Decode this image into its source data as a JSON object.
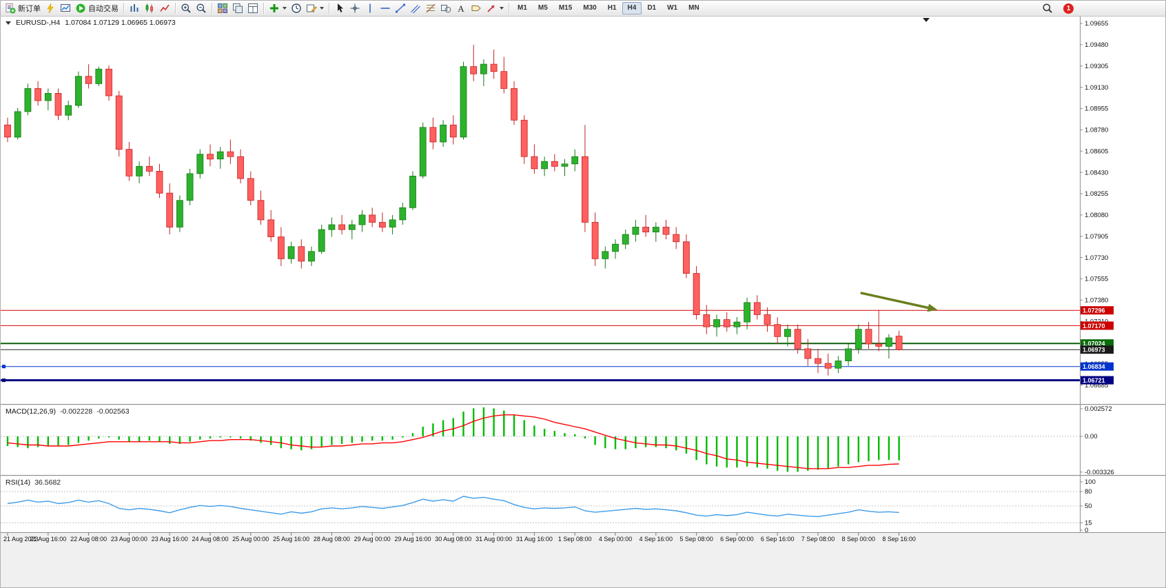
{
  "toolbar": {
    "groups": [
      {
        "items": [
          {
            "name": "new-order",
            "icon": "new-order-icon",
            "label": "新订单"
          },
          {
            "name": "mql-editor",
            "icon": "bolt-icon"
          },
          {
            "name": "market-watch",
            "icon": "market-watch-icon"
          },
          {
            "name": "auto-trading",
            "icon": "autotrade-play-icon",
            "label": "自动交易"
          }
        ]
      },
      {
        "items": [
          {
            "name": "bar-chart-mode",
            "icon": "bar-chart-icon"
          },
          {
            "name": "candlestick-chart-mode",
            "icon": "candle-chart-icon"
          },
          {
            "name": "line-chart-mode",
            "icon": "line-chart-icon"
          }
        ]
      },
      {
        "items": [
          {
            "name": "zoom-in",
            "icon": "zoom-in-icon"
          },
          {
            "name": "zoom-out",
            "icon": "zoom-out-icon"
          }
        ]
      },
      {
        "items": [
          {
            "name": "tile-windows",
            "icon": "tile-windows-icon"
          },
          {
            "name": "auto-arrange",
            "icon": "arrange-icon"
          },
          {
            "name": "data-window",
            "icon": "data-window-icon"
          }
        ]
      },
      {
        "items": [
          {
            "name": "add-indicator",
            "icon": "add-indicator-icon",
            "caret": true
          },
          {
            "name": "clock",
            "icon": "clock-icon"
          },
          {
            "name": "templates",
            "icon": "template-icon",
            "caret": true
          }
        ]
      },
      {
        "items": [
          {
            "name": "cursor",
            "icon": "cursor-icon"
          },
          {
            "name": "crosshair",
            "icon": "crosshair-icon"
          },
          {
            "name": "draw-vertical-line",
            "icon": "vline-icon"
          },
          {
            "name": "draw-horizontal-line",
            "icon": "hline-icon"
          },
          {
            "name": "draw-trendline",
            "icon": "trendline-icon"
          },
          {
            "name": "draw-channel",
            "icon": "channel-icon"
          },
          {
            "name": "draw-fibonacci",
            "icon": "fibonacci-icon"
          },
          {
            "name": "draw-shapes",
            "icon": "shapes-icon"
          },
          {
            "name": "draw-text",
            "icon": "text-icon"
          },
          {
            "name": "draw-label",
            "icon": "label-icon"
          },
          {
            "name": "draw-arrows",
            "icon": "arrows-icon",
            "caret": true
          }
        ]
      }
    ],
    "timeframes": [
      "M1",
      "M5",
      "M15",
      "M30",
      "H1",
      "H4",
      "D1",
      "W1",
      "MN"
    ],
    "active_timeframe": "H4",
    "notification_count": "1"
  },
  "chart": {
    "symbol_label": "EURUSD-,H4",
    "ohlc_label": "1.07084 1.07129 1.06965 1.06973",
    "style": {
      "up_fill": "#2db22d",
      "up_edge": "#147a14",
      "down_fill": "#ff6060",
      "down_edge": "#c42222",
      "macd_histogram": "#00bb00",
      "macd_signal": "#ff0000",
      "rsi_line": "#3d9be9",
      "grid_dash": "#c4c4c4",
      "axis_text": "#111111",
      "arrow_color": "#6a7f1f"
    },
    "price_axis_labels": [
      "1.09655",
      "1.09480",
      "1.09305",
      "1.09130",
      "1.08955",
      "1.08780",
      "1.08605",
      "1.08430",
      "1.08255",
      "1.08080",
      "1.07905",
      "1.07730",
      "1.07555",
      "1.07380",
      "1.07210",
      "1.07030",
      "1.06855",
      "1.06685"
    ],
    "time_axis_labels": [
      "21 Aug 2023",
      "21 Aug 16:00",
      "22 Aug 08:00",
      "23 Aug 00:00",
      "23 Aug 16:00",
      "24 Aug 08:00",
      "25 Aug 00:00",
      "25 Aug 16:00",
      "28 Aug 08:00",
      "29 Aug 00:00",
      "29 Aug 16:00",
      "30 Aug 08:00",
      "31 Aug 00:00",
      "31 Aug 16:00",
      "1 Sep 08:00",
      "4 Sep 00:00",
      "4 Sep 16:00",
      "5 Sep 08:00",
      "6 Sep 00:00",
      "6 Sep 16:00",
      "7 Sep 08:00",
      "8 Sep 00:00",
      "8 Sep 16:00"
    ]
  },
  "chart_data": {
    "type": "candlestick",
    "symbol": "EURUSD-",
    "timeframe": "H4",
    "last_ohlc": {
      "open": "1.07084",
      "high": "1.07129",
      "low": "1.06965",
      "close": "1.06973"
    },
    "candles": [
      [
        1.0882,
        1.0888,
        1.0868,
        1.0872
      ],
      [
        1.0872,
        1.0896,
        1.087,
        1.0893
      ],
      [
        1.0893,
        1.0916,
        1.089,
        1.0912
      ],
      [
        1.0912,
        1.0918,
        1.0898,
        1.0902
      ],
      [
        1.0902,
        1.0912,
        1.0894,
        1.0908
      ],
      [
        1.0908,
        1.0912,
        1.0886,
        1.089
      ],
      [
        1.089,
        1.0902,
        1.0886,
        1.0898
      ],
      [
        1.0898,
        1.0926,
        1.0896,
        1.0922
      ],
      [
        1.0922,
        1.0932,
        1.0912,
        1.0916
      ],
      [
        1.0916,
        1.093,
        1.0914,
        1.0928
      ],
      [
        1.0928,
        1.0931,
        1.0902,
        1.0906
      ],
      [
        1.0906,
        1.091,
        1.0856,
        1.0862
      ],
      [
        1.0862,
        1.0868,
        1.0836,
        1.084
      ],
      [
        1.084,
        1.0852,
        1.0834,
        1.0848
      ],
      [
        1.0848,
        1.0856,
        1.084,
        1.0844
      ],
      [
        1.0844,
        1.085,
        1.0822,
        1.0826
      ],
      [
        1.0826,
        1.0834,
        1.0792,
        1.0798
      ],
      [
        1.0798,
        1.0824,
        1.0794,
        1.082
      ],
      [
        1.082,
        1.0846,
        1.0816,
        1.0842
      ],
      [
        1.0842,
        1.0862,
        1.0838,
        1.0858
      ],
      [
        1.0858,
        1.0866,
        1.0848,
        1.0854
      ],
      [
        1.0854,
        1.0864,
        1.0846,
        1.086
      ],
      [
        1.086,
        1.087,
        1.085,
        1.0856
      ],
      [
        1.0856,
        1.0862,
        1.0834,
        1.0838
      ],
      [
        1.0838,
        1.0844,
        1.0816,
        1.082
      ],
      [
        1.082,
        1.0828,
        1.08,
        1.0804
      ],
      [
        1.0804,
        1.0812,
        1.0786,
        1.079
      ],
      [
        1.079,
        1.0798,
        1.0766,
        1.0772
      ],
      [
        1.0772,
        1.0786,
        1.0768,
        1.0782
      ],
      [
        1.0782,
        1.0788,
        1.0764,
        1.077
      ],
      [
        1.077,
        1.0782,
        1.0766,
        1.0778
      ],
      [
        1.0778,
        1.08,
        1.0776,
        1.0796
      ],
      [
        1.0796,
        1.0806,
        1.079,
        1.08
      ],
      [
        1.08,
        1.0808,
        1.0792,
        1.0796
      ],
      [
        1.0796,
        1.0804,
        1.0788,
        1.08
      ],
      [
        1.08,
        1.0812,
        1.0794,
        1.0808
      ],
      [
        1.0808,
        1.0814,
        1.0798,
        1.0802
      ],
      [
        1.0802,
        1.081,
        1.0794,
        1.0798
      ],
      [
        1.0798,
        1.0808,
        1.0792,
        1.0804
      ],
      [
        1.0804,
        1.0818,
        1.08,
        1.0814
      ],
      [
        1.0814,
        1.0844,
        1.0812,
        1.084
      ],
      [
        1.084,
        1.0884,
        1.0838,
        1.088
      ],
      [
        1.088,
        1.0888,
        1.0862,
        1.0868
      ],
      [
        1.0868,
        1.0886,
        1.0864,
        1.0882
      ],
      [
        1.0882,
        1.089,
        1.0866,
        1.0872
      ],
      [
        1.0872,
        1.0934,
        1.087,
        1.093
      ],
      [
        1.093,
        1.0948,
        1.0918,
        1.0924
      ],
      [
        1.0924,
        1.0936,
        1.0914,
        1.0932
      ],
      [
        1.0932,
        1.0944,
        1.092,
        1.0926
      ],
      [
        1.0926,
        1.0938,
        1.0908,
        1.0912
      ],
      [
        1.0912,
        1.0918,
        1.0882,
        1.0886
      ],
      [
        1.0886,
        1.089,
        1.085,
        1.0856
      ],
      [
        1.0856,
        1.0866,
        1.0842,
        1.0846
      ],
      [
        1.0846,
        1.0856,
        1.084,
        1.0852
      ],
      [
        1.0852,
        1.0858,
        1.0844,
        1.0848
      ],
      [
        1.0848,
        1.0854,
        1.084,
        1.085
      ],
      [
        1.085,
        1.0862,
        1.0844,
        1.0856
      ],
      [
        1.0856,
        1.0882,
        1.0794,
        1.0802
      ],
      [
        1.0802,
        1.081,
        1.0766,
        1.0772
      ],
      [
        1.0772,
        1.0782,
        1.0764,
        1.0778
      ],
      [
        1.0778,
        1.0788,
        1.0772,
        1.0784
      ],
      [
        1.0784,
        1.0796,
        1.078,
        1.0792
      ],
      [
        1.0792,
        1.0804,
        1.0786,
        1.0798
      ],
      [
        1.0798,
        1.0808,
        1.079,
        1.0794
      ],
      [
        1.0794,
        1.0802,
        1.0786,
        1.0798
      ],
      [
        1.0798,
        1.0804,
        1.0788,
        1.0792
      ],
      [
        1.0792,
        1.0798,
        1.078,
        1.0786
      ],
      [
        1.0786,
        1.0792,
        1.0756,
        1.076
      ],
      [
        1.076,
        1.0766,
        1.0722,
        1.0726
      ],
      [
        1.0726,
        1.0734,
        1.071,
        1.0716
      ],
      [
        1.0716,
        1.0726,
        1.0708,
        1.0722
      ],
      [
        1.0722,
        1.0728,
        1.0712,
        1.0716
      ],
      [
        1.0716,
        1.0724,
        1.071,
        1.072
      ],
      [
        1.072,
        1.074,
        1.0714,
        1.0736
      ],
      [
        1.0736,
        1.0742,
        1.0722,
        1.0726
      ],
      [
        1.0726,
        1.0732,
        1.0712,
        1.0718
      ],
      [
        1.0718,
        1.0724,
        1.0702,
        1.0708
      ],
      [
        1.0708,
        1.0718,
        1.07,
        1.0714
      ],
      [
        1.0714,
        1.0718,
        1.0694,
        1.0698
      ],
      [
        1.0698,
        1.0706,
        1.0684,
        1.069
      ],
      [
        1.069,
        1.0698,
        1.0678,
        1.0686
      ],
      [
        1.0686,
        1.0694,
        1.0676,
        1.0682
      ],
      [
        1.0682,
        1.0692,
        1.0678,
        1.0688
      ],
      [
        1.0688,
        1.0702,
        1.0684,
        1.0698
      ],
      [
        1.0698,
        1.0718,
        1.0694,
        1.0714
      ],
      [
        1.0714,
        1.072,
        1.0698,
        1.0702
      ],
      [
        1.0702,
        1.073,
        1.0696,
        1.07
      ],
      [
        1.07,
        1.071,
        1.069,
        1.0707
      ],
      [
        1.07084,
        1.07129,
        1.06965,
        1.06973
      ]
    ],
    "hlines": [
      {
        "label": "1.07296",
        "price": 1.07296,
        "color": "#d40000",
        "tag_color": "#cc0000",
        "width": 1
      },
      {
        "label": "1.07170",
        "price": 1.0717,
        "color": "#d40000",
        "tag_color": "#cc0000",
        "width": 1
      },
      {
        "label": "1.07024",
        "price": 1.07024,
        "color": "#0a5d0a",
        "tag_color": "#0a6b0a",
        "width": 2
      },
      {
        "label": "1.06973",
        "price": 1.06973,
        "color": "#222222",
        "tag_color": "#1a1a1a",
        "width": 1
      },
      {
        "label": "1.06834",
        "price": 1.06834,
        "color": "#0033cc",
        "tag_color": "#0033cc",
        "width": 1
      },
      {
        "label": "1.06721",
        "price": 1.06721,
        "color": "#000080",
        "tag_color": "#000080",
        "width": 3
      }
    ],
    "annotation_arrow": {
      "start_bar": 84.2,
      "start_price": 1.0744,
      "end_bar": 91.8,
      "end_price": 1.073
    },
    "indicators": {
      "macd": {
        "title": "MACD(12,26,9)",
        "current": "-0.002228",
        "current_signal": "-0.002563",
        "axis_labels": [
          {
            "text": "0.002572",
            "value": 0.002572
          },
          {
            "text": "0.00",
            "value": 0
          },
          {
            "text": "-0.003326",
            "value": -0.003326
          }
        ],
        "histogram": [
          -0.0009,
          -0.001,
          -0.0011,
          -0.001,
          -0.0009,
          -0.0009,
          -0.0008,
          -0.0006,
          -0.0004,
          -0.0002,
          -0.0001,
          -0.0003,
          -0.0005,
          -0.0005,
          -0.0004,
          -0.0005,
          -0.0007,
          -0.0007,
          -0.0005,
          -0.0003,
          -0.0002,
          -0.0001,
          -0.0001,
          -0.0002,
          -0.0004,
          -0.0006,
          -0.0008,
          -0.0011,
          -0.0012,
          -0.0013,
          -0.0012,
          -0.001,
          -0.0008,
          -0.0007,
          -0.0006,
          -0.0005,
          -0.0004,
          -0.0004,
          -0.0003,
          -0.0001,
          0.0003,
          0.0009,
          0.0012,
          0.0015,
          0.0017,
          0.0023,
          0.0026,
          0.0027,
          0.0026,
          0.0024,
          0.002,
          0.0015,
          0.001,
          0.0007,
          0.0005,
          0.0003,
          0.0002,
          -0.0002,
          -0.0008,
          -0.0011,
          -0.0012,
          -0.0012,
          -0.0011,
          -0.001,
          -0.001,
          -0.0011,
          -0.0013,
          -0.0016,
          -0.0022,
          -0.0026,
          -0.0028,
          -0.0029,
          -0.0029,
          -0.0028,
          -0.0029,
          -0.003,
          -0.0032,
          -0.0033,
          -0.0033,
          -0.0032,
          -0.0031,
          -0.003,
          -0.0028,
          -0.0026,
          -0.0024,
          -0.0023,
          -0.0022,
          -0.0022,
          -0.002228
        ],
        "signal": [
          -0.0006,
          -0.0007,
          -0.0008,
          -0.0008,
          -0.0009,
          -0.0009,
          -0.0009,
          -0.0008,
          -0.0007,
          -0.0006,
          -0.0005,
          -0.0005,
          -0.0005,
          -0.0005,
          -0.0005,
          -0.0005,
          -0.0005,
          -0.0006,
          -0.0006,
          -0.0005,
          -0.0004,
          -0.0004,
          -0.0003,
          -0.0003,
          -0.0003,
          -0.0004,
          -0.0005,
          -0.0006,
          -0.0008,
          -0.0009,
          -0.001,
          -0.001,
          -0.0009,
          -0.0009,
          -0.0008,
          -0.0007,
          -0.0007,
          -0.0006,
          -0.0006,
          -0.0005,
          -0.0003,
          -0.0001,
          0.0002,
          0.0005,
          0.0007,
          0.001,
          0.0014,
          0.0017,
          0.0019,
          0.002,
          0.002,
          0.0019,
          0.0018,
          0.0016,
          0.0013,
          0.0011,
          0.0009,
          0.0007,
          0.0004,
          0.0001,
          -0.0002,
          -0.0004,
          -0.0006,
          -0.0007,
          -0.0008,
          -0.0008,
          -0.0009,
          -0.0011,
          -0.0013,
          -0.0016,
          -0.0018,
          -0.0021,
          -0.0022,
          -0.0024,
          -0.0025,
          -0.0026,
          -0.0027,
          -0.0028,
          -0.0029,
          -0.003,
          -0.003,
          -0.003,
          -0.0029,
          -0.0029,
          -0.0028,
          -0.0027,
          -0.0027,
          -0.0026,
          -0.002563
        ]
      },
      "rsi": {
        "title": "RSI(14)",
        "current": "36.5682",
        "levels": [
          80,
          50,
          15
        ],
        "axis_labels": [
          {
            "text": "100",
            "value": 100
          },
          {
            "text": "80",
            "value": 80
          },
          {
            "text": "50",
            "value": 50
          },
          {
            "text": "15",
            "value": 15
          },
          {
            "text": "0",
            "value": 0
          }
        ],
        "values": [
          55,
          58,
          62,
          58,
          60,
          55,
          57,
          62,
          58,
          61,
          55,
          45,
          42,
          45,
          43,
          40,
          36,
          42,
          47,
          51,
          49,
          51,
          49,
          45,
          42,
          39,
          36,
          33,
          38,
          35,
          38,
          44,
          46,
          44,
          46,
          49,
          47,
          45,
          48,
          51,
          57,
          64,
          60,
          63,
          60,
          70,
          66,
          68,
          64,
          61,
          53,
          47,
          44,
          46,
          45,
          46,
          48,
          40,
          37,
          39,
          41,
          43,
          45,
          43,
          44,
          42,
          40,
          36,
          31,
          29,
          32,
          30,
          32,
          37,
          34,
          31,
          29,
          33,
          31,
          29,
          28,
          31,
          34,
          37,
          42,
          39,
          37,
          38,
          36.5682
        ]
      }
    }
  }
}
